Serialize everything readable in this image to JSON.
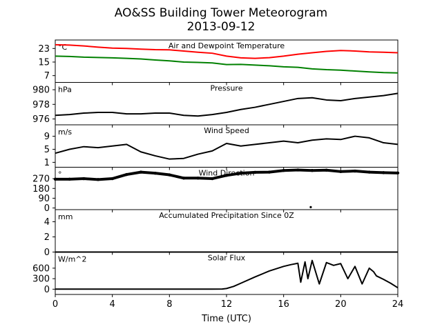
{
  "title": "AO&SS Building Tower Meteorogram",
  "subtitle": "2013-09-12",
  "xlabel": "Time (UTC)",
  "x_ticks": [
    0,
    4,
    8,
    12,
    16,
    20,
    24
  ],
  "colors": {
    "temperature": "#ff0000",
    "dewpoint": "#008000",
    "black": "#000000"
  },
  "chart_data": [
    {
      "type": "line",
      "title": "Air and Dewpoint Temperature",
      "unit": "°C",
      "ylim": [
        3,
        28
      ],
      "yticks": [
        7,
        15,
        23
      ],
      "xlim": [
        0,
        24
      ],
      "series": [
        {
          "color": "#ff0000",
          "x": [
            0,
            1,
            2,
            3,
            4,
            5,
            6,
            7,
            8,
            9,
            10,
            11,
            12,
            13,
            14,
            15,
            16,
            17,
            18,
            19,
            20,
            21,
            22,
            23,
            24
          ],
          "y": [
            25.2,
            25.0,
            24.5,
            23.8,
            23.2,
            23.0,
            22.6,
            22.3,
            22.2,
            21.5,
            20.8,
            20.2,
            18.5,
            17.5,
            17.2,
            17.6,
            18.5,
            19.6,
            20.5,
            21.3,
            21.8,
            21.5,
            21.0,
            20.8,
            20.5
          ]
        },
        {
          "color": "#008000",
          "x": [
            0,
            1,
            2,
            3,
            4,
            5,
            6,
            7,
            8,
            9,
            10,
            11,
            12,
            13,
            14,
            15,
            16,
            17,
            18,
            19,
            20,
            21,
            22,
            23,
            24
          ],
          "y": [
            18.5,
            18.3,
            17.9,
            17.7,
            17.5,
            17.2,
            16.8,
            16.2,
            15.7,
            15.0,
            14.8,
            14.5,
            13.5,
            13.6,
            13.2,
            12.8,
            12.2,
            11.9,
            11.0,
            10.5,
            10.2,
            9.7,
            9.2,
            8.8,
            8.6
          ]
        }
      ]
    },
    {
      "type": "line",
      "title": "Pressure",
      "unit": "hPa",
      "ylim": [
        975.2,
        981.0
      ],
      "yticks": [
        976,
        978,
        980
      ],
      "xlim": [
        0,
        24
      ],
      "series": [
        {
          "color": "#000000",
          "x": [
            0,
            1,
            2,
            3,
            4,
            5,
            6,
            7,
            8,
            9,
            10,
            11,
            12,
            13,
            14,
            15,
            16,
            17,
            18,
            19,
            20,
            21,
            22,
            23,
            24
          ],
          "y": [
            976.5,
            976.6,
            976.8,
            976.9,
            976.9,
            976.7,
            976.7,
            976.8,
            976.8,
            976.5,
            976.4,
            976.6,
            976.9,
            977.3,
            977.6,
            978.0,
            978.4,
            978.8,
            978.9,
            978.6,
            978.5,
            978.8,
            979.0,
            979.2,
            979.5
          ]
        }
      ]
    },
    {
      "type": "line",
      "title": "Wind Speed",
      "unit": "m/s",
      "ylim": [
        -0.5,
        12.5
      ],
      "yticks": [
        1,
        5,
        9
      ],
      "xlim": [
        0,
        24
      ],
      "series": [
        {
          "color": "#000000",
          "x": [
            0,
            1,
            2,
            3,
            4,
            5,
            6,
            7,
            8,
            9,
            10,
            11,
            12,
            13,
            14,
            15,
            16,
            17,
            18,
            19,
            20,
            21,
            22,
            23,
            24
          ],
          "y": [
            3.8,
            5.0,
            5.8,
            5.5,
            6.0,
            6.5,
            4.2,
            3.0,
            2.0,
            2.2,
            3.5,
            4.5,
            6.8,
            6.0,
            6.5,
            7.0,
            7.5,
            7.0,
            7.8,
            8.2,
            8.0,
            9.0,
            8.5,
            7.0,
            6.5
          ]
        }
      ]
    },
    {
      "type": "scatter",
      "title": "Wind Direction",
      "unit": "°",
      "ylim": [
        -15,
        375
      ],
      "yticks": [
        0,
        90,
        180,
        270
      ],
      "xlim": [
        0,
        24
      ],
      "series": [
        {
          "color": "#000000",
          "x": [
            0,
            1,
            2,
            3,
            4,
            5,
            6,
            7,
            8,
            9,
            10,
            11,
            12,
            13,
            14,
            15,
            16,
            17,
            18,
            19,
            20,
            21,
            22,
            23,
            24
          ],
          "y": [
            265,
            265,
            270,
            262,
            270,
            308,
            330,
            320,
            305,
            275,
            275,
            270,
            300,
            320,
            328,
            330,
            345,
            350,
            345,
            348,
            335,
            340,
            330,
            325,
            322
          ]
        },
        {
          "color": "#000000",
          "x": [
            17.9
          ],
          "y": [
            8
          ]
        }
      ]
    },
    {
      "type": "line",
      "title": "Accumulated Precipitation Since 0Z",
      "unit": "mm",
      "ylim": [
        0,
        5.6
      ],
      "yticks": [
        0,
        2,
        4
      ],
      "xlim": [
        0,
        24
      ],
      "series": [
        {
          "color": "#000000",
          "x": [
            0,
            24
          ],
          "y": [
            0,
            0
          ]
        }
      ]
    },
    {
      "type": "line",
      "title": "Solar Flux",
      "unit": "W/m^2",
      "ylim": [
        -150,
        1060
      ],
      "yticks": [
        0,
        300,
        600
      ],
      "xlim": [
        0,
        24
      ],
      "series": [
        {
          "color": "#000000",
          "x": [
            0,
            2,
            4,
            6,
            8,
            10,
            11,
            11.7,
            12,
            12.5,
            13,
            14,
            15,
            16,
            16.5,
            17,
            17.2,
            17.5,
            17.7,
            18,
            18.5,
            19,
            19.5,
            20,
            20.5,
            21,
            21.5,
            22,
            22.3,
            22.5,
            23,
            23.5,
            24
          ],
          "y": [
            2,
            2,
            2,
            2,
            2,
            2,
            2,
            4,
            20,
            80,
            170,
            350,
            520,
            650,
            700,
            740,
            200,
            780,
            300,
            820,
            150,
            760,
            680,
            730,
            300,
            650,
            150,
            600,
            500,
            380,
            280,
            170,
            40
          ]
        }
      ]
    }
  ]
}
